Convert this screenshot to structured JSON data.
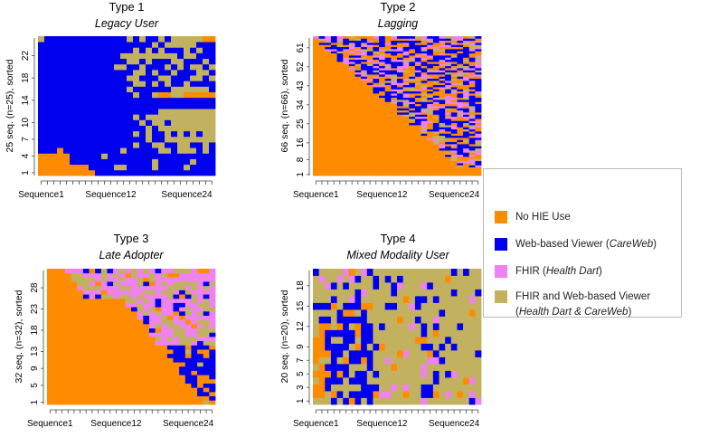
{
  "chart_data": [
    {
      "type": "heatmap",
      "title": "Type 1",
      "subtitle": "Legacy User",
      "ylabel": "25 seq. (n=25), sorted",
      "n_rows": 25,
      "n_cols": 28,
      "y_ticks": [
        "1",
        "4",
        "7",
        "10",
        "14",
        "18",
        "22"
      ],
      "y_tick_rows": [
        1,
        4,
        7,
        10,
        14,
        18,
        22
      ],
      "x_tick_labels": [
        "Sequence1",
        "Sequence12",
        "Sequence24"
      ],
      "x_tick_cols": [
        1,
        12,
        24
      ],
      "states_by_row_note": "rows listed bottom (1) to top (25); codes: 0=No HIE Use, 1=Web-based Viewer, 2=FHIR, 3=FHIR and Web-based Viewer",
      "rows": [
        "0000000001111111111111111111",
        "0000000011113311113111131111",
        "0000011111111111113111113111",
        "0000011111311111111111111111",
        "1110111111111311111331333131",
        "1111111111111113113311331131",
        "1111111111111111131133333333",
        "1111111111111113131131313133",
        "1111111111111111131333333333",
        "1111111111111111313313333333",
        "1111111111111113133333333333",
        "1111111111111111111333333333",
        "1111111111111111111111111111",
        "1111111111111111111111111111",
        "1111111111111113113003300000",
        "1111111111111131111113333331",
        "1111111111111113313131131111",
        "1111111111111133111331113313",
        "1111111111111113313113111331",
        "1111111111113311311131313313",
        "1111111111111133131113311131",
        "1111111111111333333333133111",
        "1111111111111113131311131311",
        "1111111111111111113133333111",
        "3111111111111131311313333300"
      ]
    },
    {
      "type": "heatmap",
      "title": "Type 2",
      "subtitle": "Lagging",
      "ylabel": "66 seq. (n=66), sorted",
      "n_rows": 66,
      "n_cols": 28,
      "y_ticks": [
        "1",
        "8",
        "16",
        "25",
        "34",
        "43",
        "52",
        "61"
      ],
      "y_tick_rows": [
        1,
        8,
        16,
        25,
        34,
        43,
        52,
        61
      ],
      "x_tick_labels": [
        "Sequence1",
        "Sequence12",
        "Sequence24"
      ],
      "x_tick_cols": [
        1,
        12,
        24
      ],
      "pattern_note": "Orange (No HIE Use) dominates; Web-based Viewer, FHIR and combined use appear along a descending diagonal toward later sequences."
    },
    {
      "type": "heatmap",
      "title": "Type 3",
      "subtitle": "Late Adopter",
      "ylabel": "32 seq. (n=32), sorted",
      "n_rows": 32,
      "n_cols": 28,
      "y_ticks": [
        "1",
        "5",
        "9",
        "13",
        "18",
        "23",
        "28"
      ],
      "y_tick_rows": [
        1,
        5,
        9,
        13,
        18,
        23,
        28
      ],
      "x_tick_labels": [
        "Sequence1",
        "Sequence12",
        "Sequence24"
      ],
      "x_tick_cols": [
        1,
        12,
        24
      ],
      "pattern_note": "No HIE Use early; after a diagonal boundary sequences switch to FHIR / FHIR and Web-based Viewer (upper rows) or Web-based Viewer (lower rows)."
    },
    {
      "type": "heatmap",
      "title": "Type 4",
      "subtitle": "Mixed Modality User",
      "ylabel": "20 seq. (n=20), sorted",
      "n_rows": 20,
      "n_cols": 28,
      "y_ticks": [
        "1",
        "3",
        "5",
        "7",
        "9",
        "12",
        "15",
        "18"
      ],
      "y_tick_rows": [
        1,
        3,
        5,
        7,
        9,
        12,
        15,
        18
      ],
      "x_tick_labels": [
        "Sequence1",
        "Sequence12",
        "Sequence24"
      ],
      "x_tick_cols": [
        1,
        12,
        24
      ],
      "pattern_note": "Mostly FHIR and Web-based Viewer with scattered Web-based Viewer, FHIR and some No HIE Use."
    }
  ],
  "legend": {
    "items": [
      {
        "label": "No HIE Use",
        "color": "#ff8c00"
      },
      {
        "label": "Web-based Viewer (",
        "label_em": "CareWeb",
        "label_end": ")",
        "color": "#0000ee"
      },
      {
        "label": "FHIR (",
        "label_em": "Health Dart",
        "label_end": ")",
        "color": "#ee82ee"
      },
      {
        "label": "FHIR and Web-based Viewer",
        "label2_start": "(",
        "label_em": "Health Dart & CareWeb",
        "label_end": ")",
        "color": "#c2b260"
      }
    ]
  },
  "colors": {
    "state0": "#ff8c00",
    "state1": "#0000ee",
    "state2": "#ee82ee",
    "state3": "#c2b260"
  }
}
